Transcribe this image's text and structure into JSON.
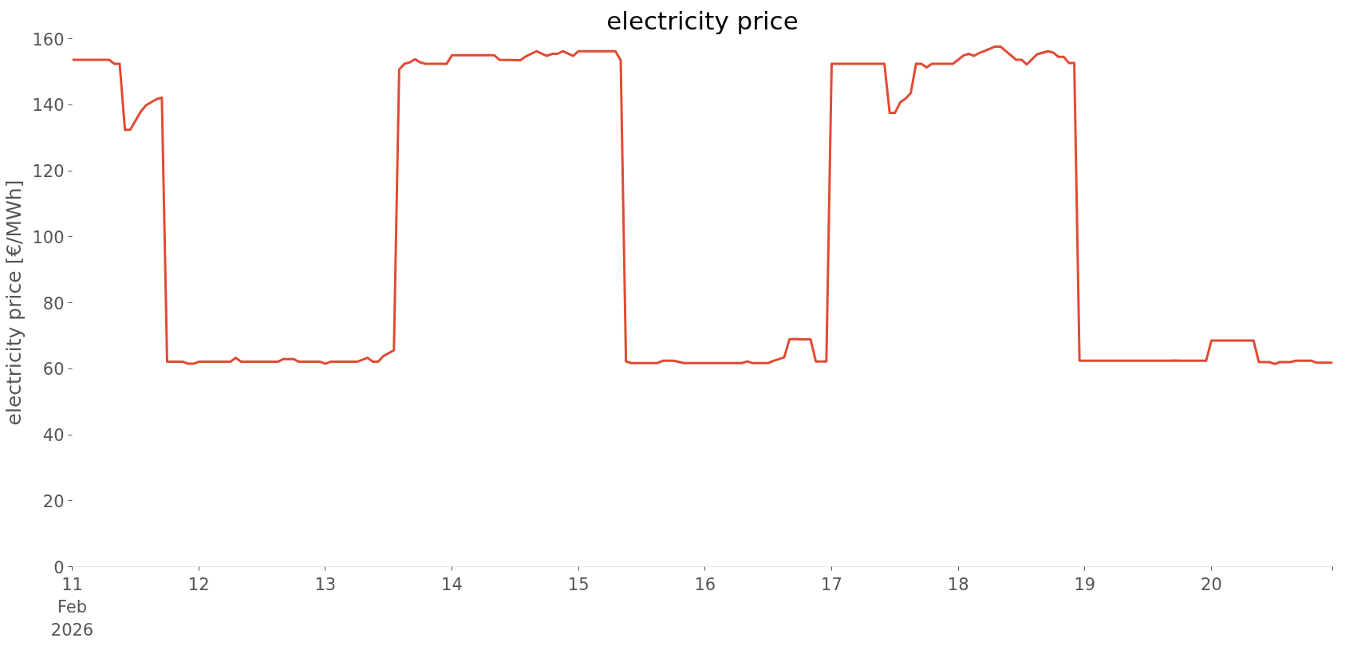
{
  "chart_data": {
    "type": "line",
    "title": "electricity price",
    "ylabel": "electricity price [€/MWh]",
    "x": [
      "2026-02-11T00:00",
      "2026-02-11T07:00",
      "2026-02-11T08:00",
      "2026-02-11T09:00",
      "2026-02-11T10:00",
      "2026-02-11T11:00",
      "2026-02-11T13:00",
      "2026-02-11T14:00",
      "2026-02-11T16:00",
      "2026-02-11T17:00",
      "2026-02-11T18:00",
      "2026-02-11T21:00",
      "2026-02-11T22:00",
      "2026-02-11T23:00",
      "2026-02-12T00:00",
      "2026-02-12T06:00",
      "2026-02-12T07:00",
      "2026-02-12T08:00",
      "2026-02-12T15:00",
      "2026-02-12T16:00",
      "2026-02-12T18:00",
      "2026-02-12T19:00",
      "2026-02-12T23:00",
      "2026-02-13T00:00",
      "2026-02-13T01:00",
      "2026-02-13T06:00",
      "2026-02-13T08:00",
      "2026-02-13T09:00",
      "2026-02-13T10:00",
      "2026-02-13T11:00",
      "2026-02-13T13:00",
      "2026-02-13T14:00",
      "2026-02-13T15:00",
      "2026-02-13T16:00",
      "2026-02-13T17:00",
      "2026-02-13T18:00",
      "2026-02-13T19:00",
      "2026-02-13T23:00",
      "2026-02-14T00:00",
      "2026-02-14T08:00",
      "2026-02-14T09:00",
      "2026-02-14T13:00",
      "2026-02-14T14:00",
      "2026-02-14T16:00",
      "2026-02-14T18:00",
      "2026-02-14T19:00",
      "2026-02-14T20:00",
      "2026-02-14T21:00",
      "2026-02-14T23:00",
      "2026-02-15T00:00",
      "2026-02-15T07:00",
      "2026-02-15T08:00",
      "2026-02-15T09:00",
      "2026-02-15T10:00",
      "2026-02-15T15:00",
      "2026-02-15T16:00",
      "2026-02-15T18:00",
      "2026-02-15T20:00",
      "2026-02-16T07:00",
      "2026-02-16T08:00",
      "2026-02-16T09:00",
      "2026-02-16T12:00",
      "2026-02-16T13:00",
      "2026-02-16T15:00",
      "2026-02-16T16:00",
      "2026-02-16T17:00",
      "2026-02-16T18:00",
      "2026-02-16T20:00",
      "2026-02-16T21:00",
      "2026-02-16T23:00",
      "2026-02-17T00:00",
      "2026-02-17T10:00",
      "2026-02-17T11:00",
      "2026-02-17T12:00",
      "2026-02-17T13:00",
      "2026-02-17T14:00",
      "2026-02-17T15:00",
      "2026-02-17T16:00",
      "2026-02-17T17:00",
      "2026-02-17T18:00",
      "2026-02-17T19:00",
      "2026-02-17T23:00",
      "2026-02-18T01:00",
      "2026-02-18T02:00",
      "2026-02-18T03:00",
      "2026-02-18T04:00",
      "2026-02-18T05:00",
      "2026-02-18T07:00",
      "2026-02-18T08:00",
      "2026-02-18T11:00",
      "2026-02-18T12:00",
      "2026-02-18T13:00",
      "2026-02-18T15:00",
      "2026-02-18T17:00",
      "2026-02-18T18:00",
      "2026-02-18T19:00",
      "2026-02-18T20:00",
      "2026-02-18T21:00",
      "2026-02-18T22:00",
      "2026-02-18T23:00",
      "2026-02-19T16:00",
      "2026-02-19T17:00",
      "2026-02-19T18:00",
      "2026-02-19T23:00",
      "2026-02-20T00:00",
      "2026-02-20T08:00",
      "2026-02-20T09:00",
      "2026-02-20T11:00",
      "2026-02-20T12:00",
      "2026-02-20T13:00",
      "2026-02-20T15:00",
      "2026-02-20T16:00",
      "2026-02-20T19:00",
      "2026-02-20T20:00",
      "2026-02-20T23:00"
    ],
    "series": [
      {
        "color": "#e24a33",
        "values": [
          153.6,
          153.6,
          152.4,
          152.4,
          132.4,
          132.4,
          137.9,
          139.8,
          141.7,
          142.1,
          62.1,
          62.1,
          61.5,
          61.5,
          62.1,
          62.1,
          63.3,
          62.1,
          62.1,
          62.9,
          62.9,
          62.1,
          62.1,
          61.5,
          62.1,
          62.1,
          63.3,
          62.1,
          62.1,
          63.8,
          65.6,
          150.7,
          152.4,
          152.8,
          153.8,
          152.8,
          152.4,
          152.4,
          155.0,
          155.0,
          153.6,
          153.5,
          154.6,
          156.2,
          154.8,
          155.4,
          155.4,
          156.2,
          154.8,
          156.2,
          156.2,
          153.5,
          62.2,
          61.7,
          61.7,
          62.4,
          62.4,
          61.7,
          61.7,
          62.2,
          61.7,
          61.7,
          62.4,
          63.4,
          68.9,
          69.0,
          68.9,
          68.9,
          62.2,
          62.2,
          152.4,
          152.4,
          137.5,
          137.5,
          140.7,
          141.8,
          143.5,
          152.4,
          152.4,
          151.3,
          152.4,
          152.4,
          154.9,
          155.4,
          154.8,
          155.7,
          156.3,
          157.6,
          157.6,
          153.6,
          153.6,
          152.2,
          155.3,
          156.2,
          155.8,
          154.5,
          154.5,
          152.6,
          152.6,
          62.4,
          62.4,
          62.5,
          62.4,
          62.4,
          68.5,
          68.5,
          62.0,
          62.0,
          61.4,
          62.0,
          62.0,
          62.4,
          62.4,
          61.8,
          61.8
        ]
      }
    ],
    "xlim": [
      "2026-02-11T00:00",
      "2026-02-20T23:00"
    ],
    "xticks": [
      {
        "value": "2026-02-11",
        "label": "11\nFeb\n2026"
      },
      {
        "value": "2026-02-12",
        "label": "12"
      },
      {
        "value": "2026-02-13",
        "label": "13"
      },
      {
        "value": "2026-02-14",
        "label": "14"
      },
      {
        "value": "2026-02-15",
        "label": "15"
      },
      {
        "value": "2026-02-16",
        "label": "16"
      },
      {
        "value": "2026-02-17",
        "label": "17"
      },
      {
        "value": "2026-02-18",
        "label": "18"
      },
      {
        "value": "2026-02-19",
        "label": "19"
      },
      {
        "value": "2026-02-20",
        "label": "20"
      },
      {
        "value": "2026-02-20T23:00",
        "label": null
      }
    ],
    "ylim": [
      0,
      160
    ],
    "yticks": [
      0,
      20,
      40,
      60,
      80,
      100,
      120,
      140,
      160
    ],
    "grid": false,
    "marker": "none",
    "line_style": "solid"
  }
}
